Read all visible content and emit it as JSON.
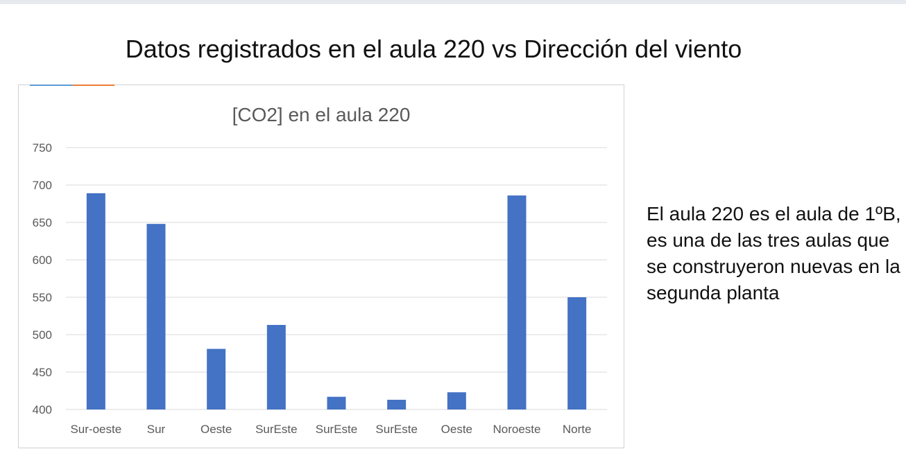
{
  "slide": {
    "title": "Datos registrados en el aula 220 vs Dirección del viento",
    "side_text": "El aula 220 es el aula de 1ºB, es una de las tres aulas que se construyeron nuevas en la segunda planta"
  },
  "colors": {
    "bar": "#4472c4",
    "grid": "#d9d9d9",
    "axis_text": "#595959",
    "accent_a": "#5b9bd5",
    "accent_b": "#ed7d31"
  },
  "chart_data": {
    "type": "bar",
    "title": "[CO2] en el aula 220",
    "xlabel": "",
    "ylabel": "",
    "categories": [
      "Sur-oeste",
      "Sur",
      "Oeste",
      "SurEste",
      "SurEste",
      "SurEste",
      "Oeste",
      "Noroeste",
      "Norte"
    ],
    "values": [
      689,
      648,
      481,
      513,
      417,
      413,
      423,
      686,
      550
    ],
    "ylim": [
      400,
      750
    ],
    "yticks": [
      400,
      450,
      500,
      550,
      600,
      650,
      700,
      750
    ],
    "grid": true,
    "legend": "none"
  }
}
